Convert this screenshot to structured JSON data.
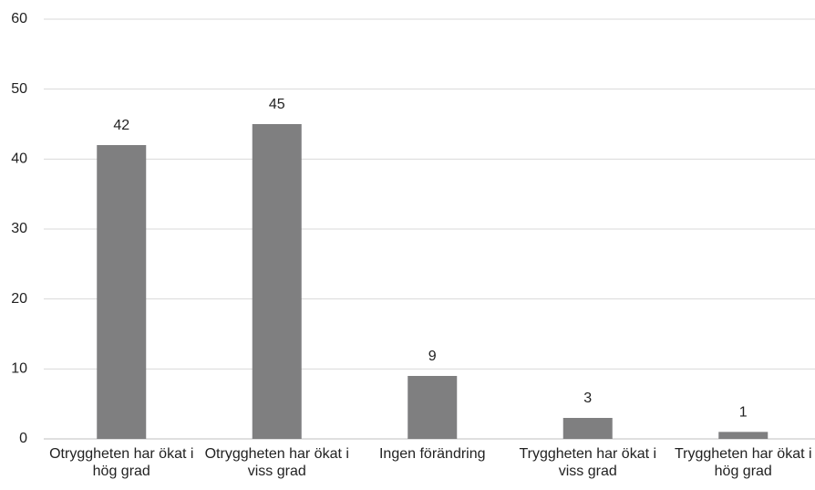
{
  "chart_data": {
    "type": "bar",
    "categories": [
      "Otryggheten har ökat i hög grad",
      "Otryggheten har ökat i viss grad",
      "Ingen förändring",
      "Tryggheten har ökat i viss grad",
      "Tryggheten har ökat i hög grad"
    ],
    "values": [
      42,
      45,
      9,
      3,
      1
    ],
    "color": "#7f7f80",
    "ylim": [
      0,
      60
    ],
    "yticks": [
      0,
      10,
      20,
      30,
      40,
      50,
      60
    ],
    "grid": true
  }
}
